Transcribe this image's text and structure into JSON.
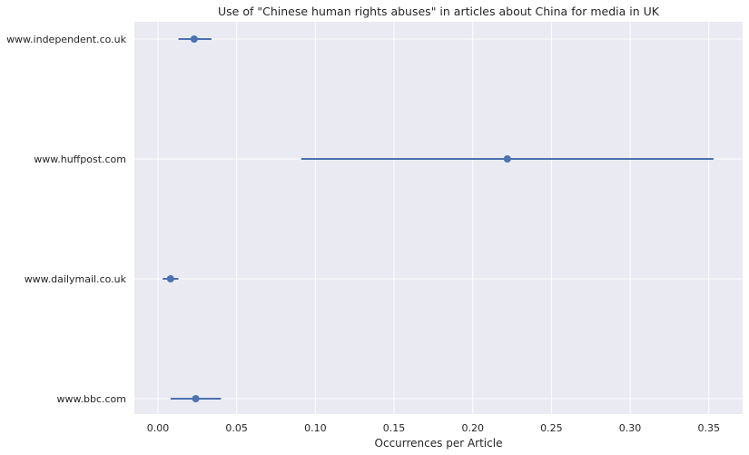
{
  "chart_data": {
    "type": "scatter",
    "title": "Use of \"Chinese human rights abuses\" in articles about China for media in UK",
    "xlabel": "Occurrences per Article",
    "ylabel": "",
    "xlim": [
      -0.015,
      0.3715
    ],
    "xticks": [
      0.0,
      0.05,
      0.1,
      0.15,
      0.2,
      0.25,
      0.3,
      0.35
    ],
    "xtick_labels": [
      "0.00",
      "0.05",
      "0.10",
      "0.15",
      "0.20",
      "0.25",
      "0.30",
      "0.35"
    ],
    "grid": true,
    "colors": {
      "background": "#eaeaf2",
      "grid": "#ffffff",
      "marker": "#4c72b0"
    },
    "categories": [
      "www.independent.co.uk",
      "www.huffpost.com",
      "www.dailymail.co.uk",
      "www.bbc.com"
    ],
    "series": [
      {
        "values": [
          0.023,
          0.222,
          0.008,
          0.024
        ],
        "ci_low": [
          0.013,
          0.091,
          0.003,
          0.008
        ],
        "ci_high": [
          0.034,
          0.353,
          0.013,
          0.04
        ]
      }
    ]
  }
}
